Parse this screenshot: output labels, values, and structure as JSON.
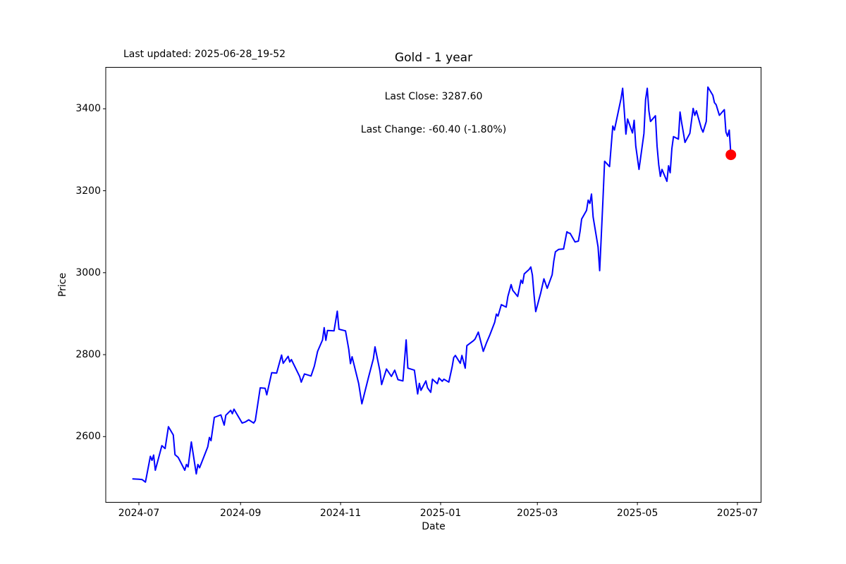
{
  "figure": {
    "last_updated_label": "Last updated: 2025-06-28_19-52",
    "title": "Gold - 1 year",
    "annotation_line1": "Last Close: 3287.60",
    "annotation_line2": "Last Change: -60.40 (-1.80%)"
  },
  "chart_data": {
    "type": "line",
    "title": "Gold - 1 year",
    "xlabel": "Date",
    "ylabel": "Price",
    "grid": false,
    "legend": null,
    "line_color": "#0000ff",
    "line_width": 2,
    "marker": {
      "shape": "circle",
      "color": "#ff0000",
      "radius": 7.5,
      "at": "last-point"
    },
    "last_close": 3287.6,
    "last_change": -60.4,
    "last_change_pct": -1.8,
    "x_ticks": [
      "2024-07",
      "2024-09",
      "2024-11",
      "2025-01",
      "2025-03",
      "2025-05",
      "2025-07"
    ],
    "y_ticks": [
      2600,
      2800,
      3000,
      3200,
      3400
    ],
    "xlim": [
      "2024-06-11",
      "2025-07-15"
    ],
    "ylim": [
      2440,
      3501
    ],
    "series": [
      {
        "name": "Gold",
        "points": [
          [
            "2024-06-27",
            2497
          ],
          [
            "2024-07-01",
            2496
          ],
          [
            "2024-07-03",
            2495
          ],
          [
            "2024-07-05",
            2489
          ],
          [
            "2024-07-08",
            2552
          ],
          [
            "2024-07-09",
            2542
          ],
          [
            "2024-07-10",
            2555
          ],
          [
            "2024-07-11",
            2518
          ],
          [
            "2024-07-15",
            2578
          ],
          [
            "2024-07-17",
            2571
          ],
          [
            "2024-07-19",
            2624
          ],
          [
            "2024-07-22",
            2604
          ],
          [
            "2024-07-23",
            2556
          ],
          [
            "2024-07-25",
            2549
          ],
          [
            "2024-07-29",
            2518
          ],
          [
            "2024-07-30",
            2532
          ],
          [
            "2024-07-31",
            2526
          ],
          [
            "2024-08-02",
            2587
          ],
          [
            "2024-08-05",
            2509
          ],
          [
            "2024-08-06",
            2532
          ],
          [
            "2024-08-07",
            2524
          ],
          [
            "2024-08-12",
            2575
          ],
          [
            "2024-08-13",
            2598
          ],
          [
            "2024-08-14",
            2590
          ],
          [
            "2024-08-16",
            2647
          ],
          [
            "2024-08-20",
            2653
          ],
          [
            "2024-08-22",
            2628
          ],
          [
            "2024-08-23",
            2652
          ],
          [
            "2024-08-26",
            2664
          ],
          [
            "2024-08-27",
            2656
          ],
          [
            "2024-08-28",
            2667
          ],
          [
            "2024-09-02",
            2633
          ],
          [
            "2024-09-04",
            2636
          ],
          [
            "2024-09-06",
            2641
          ],
          [
            "2024-09-09",
            2633
          ],
          [
            "2024-09-10",
            2639
          ],
          [
            "2024-09-13",
            2719
          ],
          [
            "2024-09-16",
            2718
          ],
          [
            "2024-09-17",
            2702
          ],
          [
            "2024-09-20",
            2756
          ],
          [
            "2024-09-23",
            2755
          ],
          [
            "2024-09-26",
            2799
          ],
          [
            "2024-09-27",
            2779
          ],
          [
            "2024-09-30",
            2796
          ],
          [
            "2024-10-01",
            2782
          ],
          [
            "2024-10-02",
            2788
          ],
          [
            "2024-10-07",
            2747
          ],
          [
            "2024-10-08",
            2733
          ],
          [
            "2024-10-10",
            2753
          ],
          [
            "2024-10-14",
            2748
          ],
          [
            "2024-10-16",
            2772
          ],
          [
            "2024-10-18",
            2808
          ],
          [
            "2024-10-21",
            2836
          ],
          [
            "2024-10-22",
            2866
          ],
          [
            "2024-10-23",
            2835
          ],
          [
            "2024-10-24",
            2859
          ],
          [
            "2024-10-28",
            2858
          ],
          [
            "2024-10-30",
            2906
          ],
          [
            "2024-10-31",
            2862
          ],
          [
            "2024-11-04",
            2858
          ],
          [
            "2024-11-06",
            2813
          ],
          [
            "2024-11-07",
            2778
          ],
          [
            "2024-11-08",
            2795
          ],
          [
            "2024-11-12",
            2730
          ],
          [
            "2024-11-14",
            2680
          ],
          [
            "2024-11-18",
            2744
          ],
          [
            "2024-11-21",
            2790
          ],
          [
            "2024-11-22",
            2819
          ],
          [
            "2024-11-25",
            2760
          ],
          [
            "2024-11-26",
            2727
          ],
          [
            "2024-11-29",
            2765
          ],
          [
            "2024-12-02",
            2747
          ],
          [
            "2024-12-04",
            2762
          ],
          [
            "2024-12-06",
            2739
          ],
          [
            "2024-12-09",
            2736
          ],
          [
            "2024-12-11",
            2836
          ],
          [
            "2024-12-12",
            2767
          ],
          [
            "2024-12-16",
            2762
          ],
          [
            "2024-12-18",
            2704
          ],
          [
            "2024-12-19",
            2730
          ],
          [
            "2024-12-20",
            2713
          ],
          [
            "2024-12-23",
            2736
          ],
          [
            "2024-12-24",
            2719
          ],
          [
            "2024-12-26",
            2708
          ],
          [
            "2024-12-27",
            2740
          ],
          [
            "2024-12-30",
            2729
          ],
          [
            "2024-12-31",
            2743
          ],
          [
            "2025-01-02",
            2735
          ],
          [
            "2025-01-03",
            2740
          ],
          [
            "2025-01-06",
            2733
          ],
          [
            "2025-01-08",
            2770
          ],
          [
            "2025-01-09",
            2793
          ],
          [
            "2025-01-10",
            2798
          ],
          [
            "2025-01-13",
            2779
          ],
          [
            "2025-01-14",
            2798
          ],
          [
            "2025-01-16",
            2767
          ],
          [
            "2025-01-17",
            2822
          ],
          [
            "2025-01-21",
            2834
          ],
          [
            "2025-01-22",
            2838
          ],
          [
            "2025-01-24",
            2855
          ],
          [
            "2025-01-27",
            2808
          ],
          [
            "2025-01-29",
            2829
          ],
          [
            "2025-01-31",
            2848
          ],
          [
            "2025-02-03",
            2879
          ],
          [
            "2025-02-04",
            2899
          ],
          [
            "2025-02-05",
            2894
          ],
          [
            "2025-02-07",
            2922
          ],
          [
            "2025-02-10",
            2916
          ],
          [
            "2025-02-11",
            2942
          ],
          [
            "2025-02-13",
            2971
          ],
          [
            "2025-02-14",
            2957
          ],
          [
            "2025-02-17",
            2942
          ],
          [
            "2025-02-19",
            2982
          ],
          [
            "2025-02-20",
            2974
          ],
          [
            "2025-02-21",
            2997
          ],
          [
            "2025-02-24",
            3008
          ],
          [
            "2025-02-25",
            3014
          ],
          [
            "2025-02-26",
            2994
          ],
          [
            "2025-02-27",
            2944
          ],
          [
            "2025-02-28",
            2905
          ],
          [
            "2025-03-03",
            2950
          ],
          [
            "2025-03-05",
            2985
          ],
          [
            "2025-03-07",
            2962
          ],
          [
            "2025-03-10",
            2995
          ],
          [
            "2025-03-11",
            3028
          ],
          [
            "2025-03-12",
            3051
          ],
          [
            "2025-03-14",
            3057
          ],
          [
            "2025-03-17",
            3058
          ],
          [
            "2025-03-19",
            3100
          ],
          [
            "2025-03-20",
            3097
          ],
          [
            "2025-03-21",
            3096
          ],
          [
            "2025-03-24",
            3075
          ],
          [
            "2025-03-26",
            3077
          ],
          [
            "2025-03-27",
            3100
          ],
          [
            "2025-03-28",
            3131
          ],
          [
            "2025-03-31",
            3152
          ],
          [
            "2025-04-01",
            3177
          ],
          [
            "2025-04-02",
            3169
          ],
          [
            "2025-04-03",
            3192
          ],
          [
            "2025-04-04",
            3136
          ],
          [
            "2025-04-07",
            3063
          ],
          [
            "2025-04-08",
            3005
          ],
          [
            "2025-04-09",
            3090
          ],
          [
            "2025-04-10",
            3180
          ],
          [
            "2025-04-11",
            3272
          ],
          [
            "2025-04-14",
            3259
          ],
          [
            "2025-04-16",
            3358
          ],
          [
            "2025-04-17",
            3348
          ],
          [
            "2025-04-21",
            3425
          ],
          [
            "2025-04-22",
            3450
          ],
          [
            "2025-04-23",
            3395
          ],
          [
            "2025-04-24",
            3338
          ],
          [
            "2025-04-25",
            3375
          ],
          [
            "2025-04-28",
            3341
          ],
          [
            "2025-04-29",
            3372
          ],
          [
            "2025-04-30",
            3309
          ],
          [
            "2025-05-02",
            3252
          ],
          [
            "2025-05-05",
            3340
          ],
          [
            "2025-05-06",
            3422
          ],
          [
            "2025-05-07",
            3450
          ],
          [
            "2025-05-08",
            3395
          ],
          [
            "2025-05-09",
            3369
          ],
          [
            "2025-05-12",
            3383
          ],
          [
            "2025-05-13",
            3309
          ],
          [
            "2025-05-14",
            3263
          ],
          [
            "2025-05-15",
            3235
          ],
          [
            "2025-05-16",
            3252
          ],
          [
            "2025-05-19",
            3223
          ],
          [
            "2025-05-20",
            3261
          ],
          [
            "2025-05-21",
            3244
          ],
          [
            "2025-05-22",
            3303
          ],
          [
            "2025-05-23",
            3332
          ],
          [
            "2025-05-26",
            3326
          ],
          [
            "2025-05-27",
            3392
          ],
          [
            "2025-05-28",
            3366
          ],
          [
            "2025-05-29",
            3343
          ],
          [
            "2025-05-30",
            3318
          ],
          [
            "2025-06-02",
            3340
          ],
          [
            "2025-06-04",
            3401
          ],
          [
            "2025-06-05",
            3384
          ],
          [
            "2025-06-06",
            3395
          ],
          [
            "2025-06-09",
            3352
          ],
          [
            "2025-06-10",
            3343
          ],
          [
            "2025-06-12",
            3369
          ],
          [
            "2025-06-13",
            3453
          ],
          [
            "2025-06-16",
            3433
          ],
          [
            "2025-06-17",
            3415
          ],
          [
            "2025-06-18",
            3410
          ],
          [
            "2025-06-20",
            3384
          ],
          [
            "2025-06-23",
            3398
          ],
          [
            "2025-06-24",
            3343
          ],
          [
            "2025-06-25",
            3333
          ],
          [
            "2025-06-26",
            3348
          ],
          [
            "2025-06-27",
            3287.6
          ]
        ]
      }
    ]
  }
}
